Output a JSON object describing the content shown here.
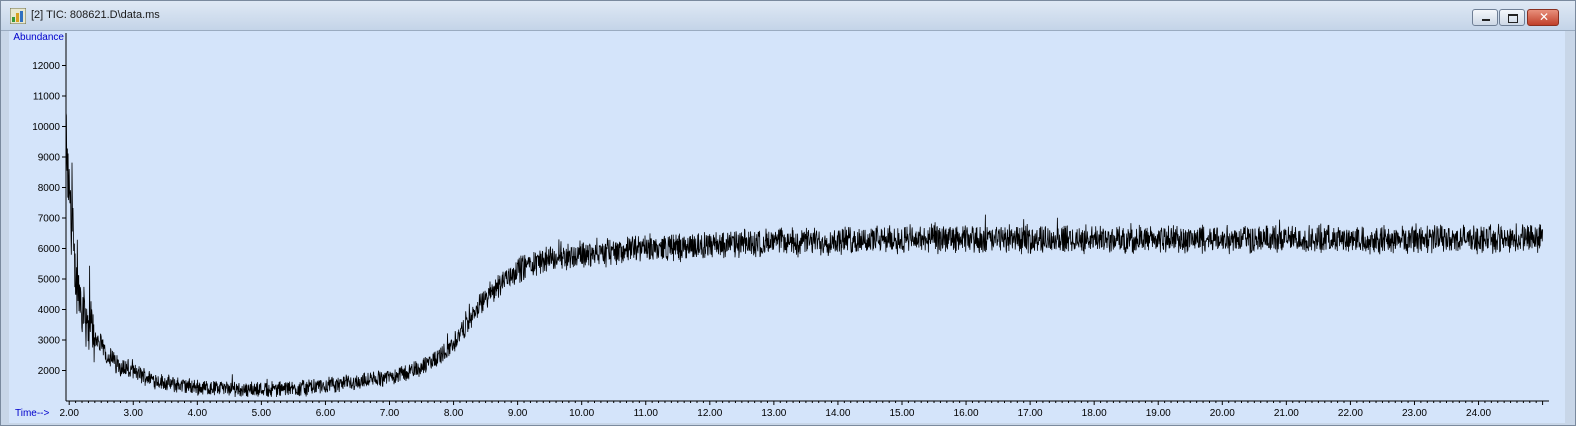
{
  "window": {
    "title": "[2] TIC: 808621.D\\data.ms"
  },
  "chart_data": {
    "type": "line",
    "xlabel": "Time-->",
    "ylabel": "Abundance",
    "xlim": [
      1.95,
      25.1
    ],
    "ylim": [
      1000,
      13000
    ],
    "x_ticks": [
      2,
      3,
      4,
      5,
      6,
      7,
      8,
      9,
      10,
      11,
      12,
      13,
      14,
      15,
      16,
      17,
      18,
      19,
      20,
      21,
      22,
      23,
      24
    ],
    "x_tick_labels": [
      "2.00",
      "3.00",
      "4.00",
      "5.00",
      "6.00",
      "7.00",
      "8.00",
      "9.00",
      "10.00",
      "11.00",
      "12.00",
      "13.00",
      "14.00",
      "15.00",
      "16.00",
      "17.00",
      "18.00",
      "19.00",
      "20.00",
      "21.00",
      "22.00",
      "23.00",
      "24.00"
    ],
    "y_ticks": [
      2000,
      3000,
      4000,
      5000,
      6000,
      7000,
      8000,
      9000,
      10000,
      11000,
      12000
    ],
    "y_tick_labels": [
      "2000",
      "3000",
      "4000",
      "5000",
      "6000",
      "7000",
      "8000",
      "9000",
      "10000",
      "11000",
      "12000"
    ],
    "series": [
      {
        "x": [
          1.95,
          2.0,
          2.05,
          2.1,
          2.2,
          2.3,
          2.4,
          2.5,
          2.6,
          2.7,
          2.8,
          3.0,
          3.2,
          3.4,
          3.6,
          3.8,
          4.0,
          4.3,
          4.6,
          5.0,
          5.4,
          5.8,
          6.2,
          6.6,
          7.0,
          7.3,
          7.6,
          7.8,
          8.0,
          8.2,
          8.4,
          8.6,
          8.8,
          9.0,
          9.2,
          9.5,
          9.8,
          10.0,
          10.5,
          11.0,
          11.5,
          12.0,
          12.5,
          13.0,
          14.0,
          15.0,
          16.0,
          17.0,
          18.0,
          19.0,
          20.0,
          21.0,
          22.0,
          23.0,
          24.0,
          25.0
        ],
        "y": [
          7800,
          7200,
          6000,
          5000,
          4200,
          3600,
          3100,
          2800,
          2500,
          2300,
          2150,
          1950,
          1800,
          1650,
          1550,
          1500,
          1450,
          1420,
          1400,
          1380,
          1400,
          1450,
          1550,
          1650,
          1800,
          1950,
          2200,
          2500,
          2900,
          3500,
          4100,
          4600,
          5000,
          5300,
          5500,
          5650,
          5750,
          5800,
          5900,
          6000,
          6050,
          6100,
          6150,
          6200,
          6250,
          6300,
          6300,
          6300,
          6300,
          6300,
          6300,
          6300,
          6300,
          6300,
          6300,
          6350
        ]
      }
    ]
  },
  "colors": {
    "plot_bg": "#d4e4fa",
    "trace": "#000000",
    "axis_label": "#0000cc"
  },
  "icons": [
    "chart-app-icon",
    "minimize-icon",
    "restore-icon",
    "close-icon"
  ]
}
